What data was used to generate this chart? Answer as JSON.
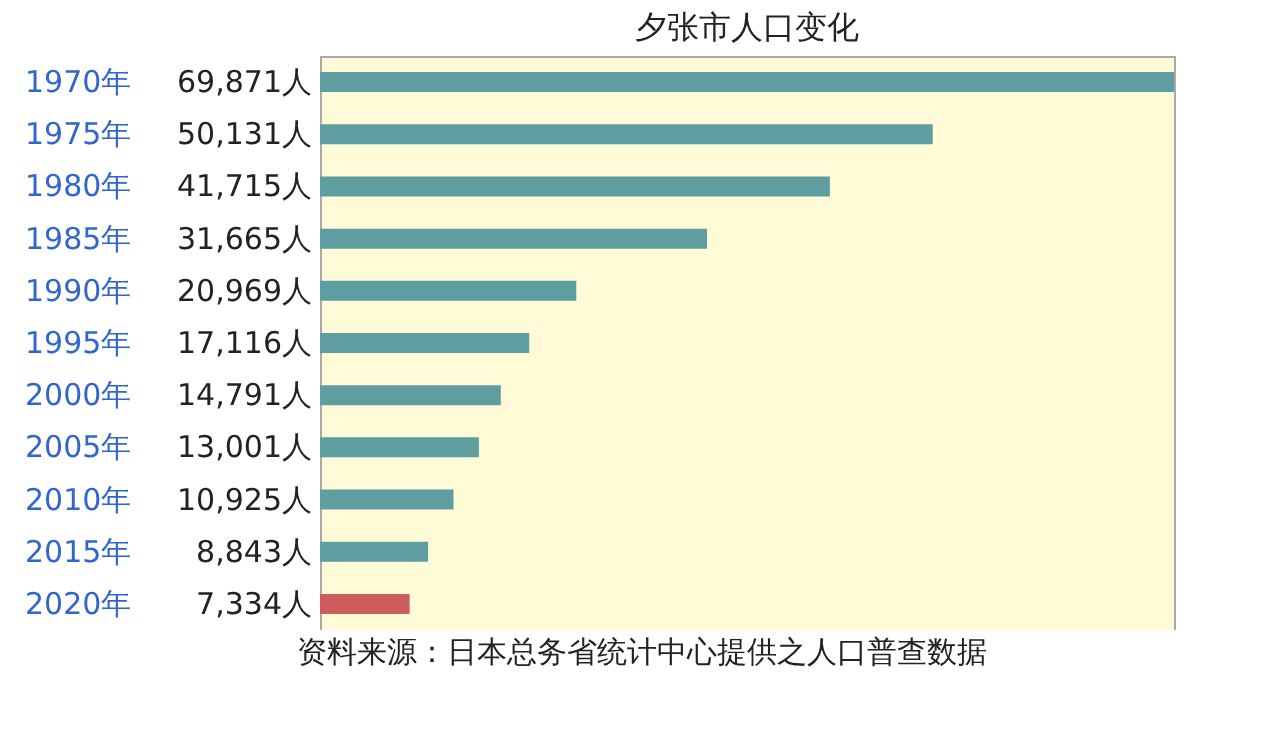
{
  "chart_data": {
    "type": "bar",
    "orientation": "horizontal",
    "title": "夕张市人口变化",
    "categories": [
      "1970年",
      "1975年",
      "1980年",
      "1985年",
      "1990年",
      "1995年",
      "2000年",
      "2005年",
      "2010年",
      "2015年",
      "2020年"
    ],
    "values": [
      69871,
      50131,
      41715,
      31665,
      20969,
      17116,
      14791,
      13001,
      10925,
      8843,
      7334
    ],
    "value_labels": [
      "69,871人",
      "50,131人",
      "41,715人",
      "31,665人",
      "20,969人",
      "17,116人",
      "14,791人",
      "13,001人",
      "10,925人",
      "8,843人",
      "7,334人"
    ],
    "colors": [
      "#5f9ea0",
      "#5f9ea0",
      "#5f9ea0",
      "#5f9ea0",
      "#5f9ea0",
      "#5f9ea0",
      "#5f9ea0",
      "#5f9ea0",
      "#5f9ea0",
      "#5f9ea0",
      "#cd5c5c"
    ],
    "annotations": [
      "资料来源：日本总务省统计中心提供之人口普查数据"
    ]
  }
}
